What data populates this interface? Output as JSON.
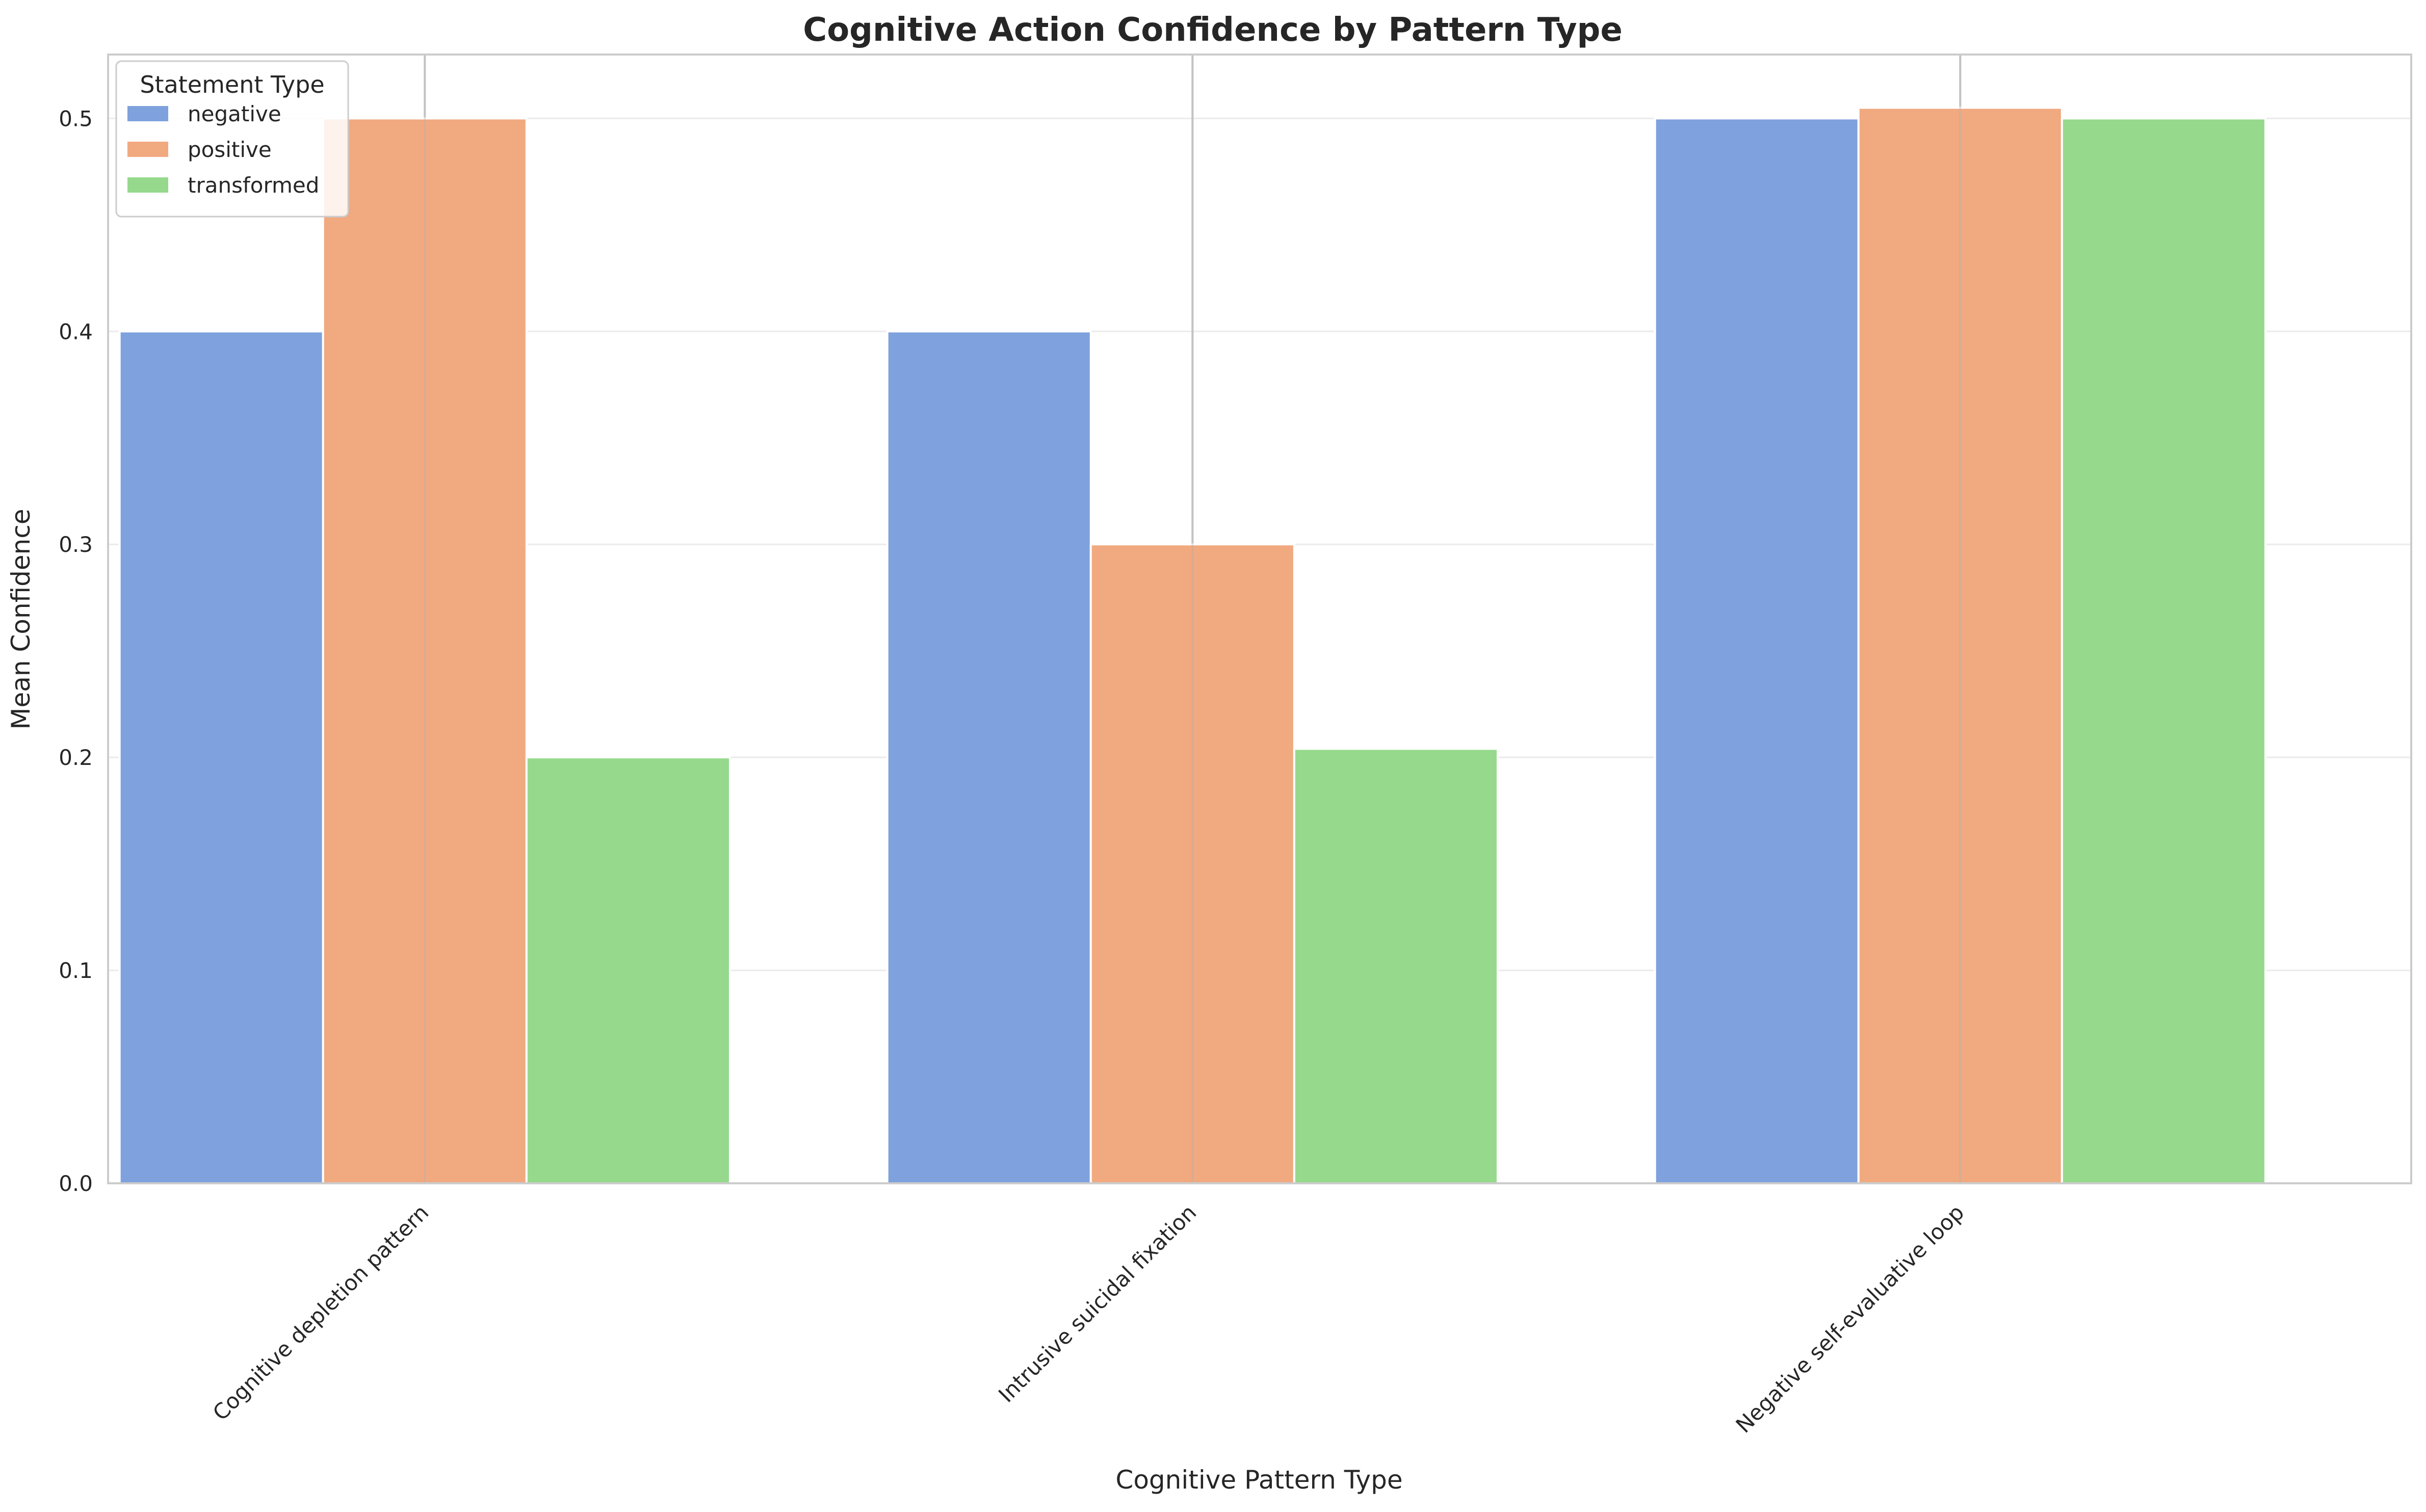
{
  "chart_data": {
    "type": "bar",
    "title": "Cognitive Action Confidence by Pattern Type",
    "xlabel": "Cognitive Pattern Type",
    "ylabel": "Mean Confidence",
    "categories": [
      "Cognitive depletion pattern",
      "Intrusive suicidal fixation",
      "Negative self-evaluative loop"
    ],
    "series": [
      {
        "name": "negative",
        "values": [
          0.4,
          0.4,
          0.5
        ],
        "color": "#7fa1dd"
      },
      {
        "name": "positive",
        "values": [
          0.5,
          0.3,
          0.505
        ],
        "color": "#f1a980"
      },
      {
        "name": "transformed",
        "values": [
          0.2,
          0.204,
          0.5
        ],
        "color": "#96d98d"
      }
    ],
    "ylim": [
      0,
      0.53
    ],
    "yticks": [
      "0.0",
      "0.1",
      "0.2",
      "0.3",
      "0.4",
      "0.5"
    ],
    "ytick_values": [
      0,
      0.1,
      0.2,
      0.3,
      0.4,
      0.5
    ],
    "legend": {
      "title": "Statement Type",
      "placement": "top-left"
    },
    "grid": true
  }
}
